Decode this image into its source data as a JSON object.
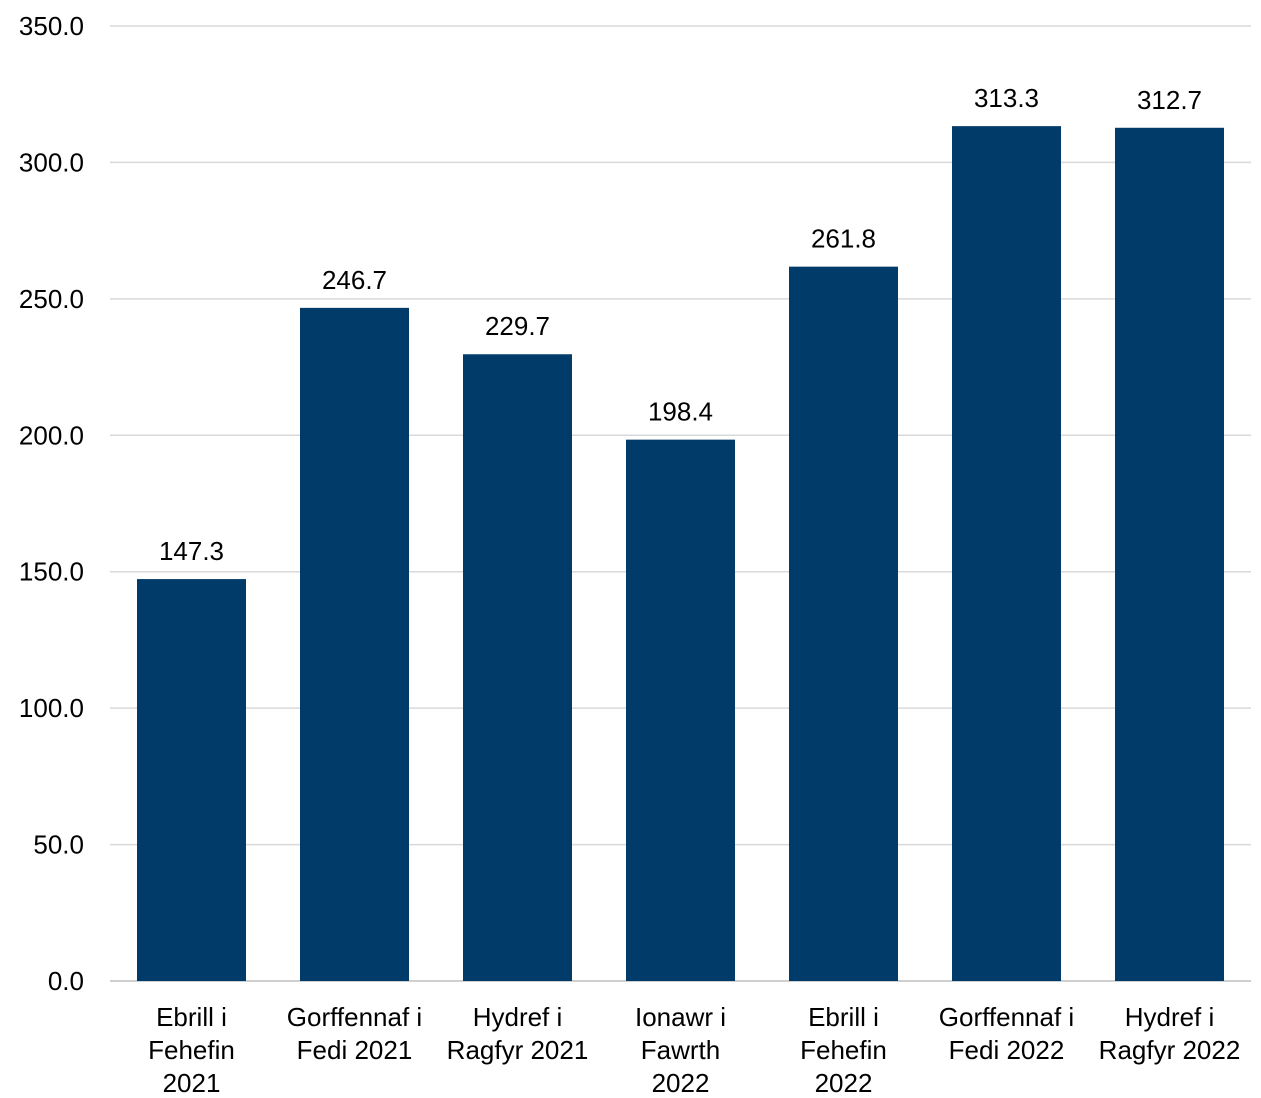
{
  "chart_data": {
    "type": "bar",
    "title": "",
    "xlabel": "",
    "ylabel": "",
    "ylim": [
      0,
      350
    ],
    "ytick_step": 50,
    "ytick_decimals": 1,
    "grid": true,
    "bar_color": "#003B6A",
    "grid_color": "#D9D9D9",
    "categories": [
      [
        "Ebrill i",
        "Fehefin",
        "2021"
      ],
      [
        "Gorffennaf i",
        "Fedi 2021"
      ],
      [
        "Hydref i",
        "Ragfyr 2021"
      ],
      [
        "Ionawr i",
        "Fawrth",
        "2022"
      ],
      [
        "Ebrill i",
        "Fehefin",
        "2022"
      ],
      [
        "Gorffennaf i",
        "Fedi 2022"
      ],
      [
        "Hydref i",
        "Ragfyr 2022"
      ]
    ],
    "values": [
      147.3,
      246.7,
      229.7,
      198.4,
      261.8,
      313.3,
      312.7
    ],
    "data_labels": [
      "147.3",
      "246.7",
      "229.7",
      "198.4",
      "261.8",
      "313.3",
      "312.7"
    ]
  }
}
